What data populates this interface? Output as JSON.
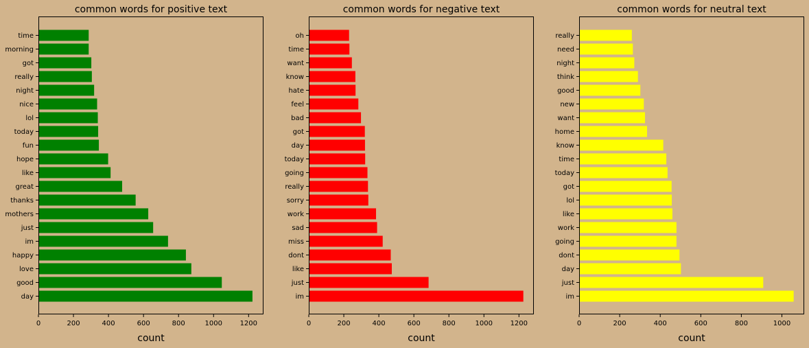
{
  "chart_data": [
    {
      "type": "bar",
      "orientation": "horizontal",
      "title": "common words for positive text",
      "xlabel": "count",
      "ylabel": "",
      "color": "#008000",
      "xlim": [
        0,
        1285
      ],
      "xticks": [
        0,
        200,
        400,
        600,
        800,
        1000,
        1200
      ],
      "grid": false,
      "categories": [
        "time",
        "morning",
        "got",
        "really",
        "night",
        "nice",
        "lol",
        "today",
        "fun",
        "hope",
        "like",
        "great",
        "thanks",
        "mothers",
        "just",
        "im",
        "happy",
        "love",
        "good",
        "day"
      ],
      "values": [
        287,
        287,
        302,
        305,
        318,
        335,
        339,
        341,
        345,
        398,
        412,
        478,
        555,
        627,
        655,
        740,
        842,
        873,
        1047,
        1222
      ]
    },
    {
      "type": "bar",
      "orientation": "horizontal",
      "title": "common words for negative text",
      "xlabel": "count",
      "ylabel": "",
      "color": "#ff0000",
      "xlim": [
        0,
        1285
      ],
      "xticks": [
        0,
        200,
        400,
        600,
        800,
        1000,
        1200
      ],
      "grid": false,
      "categories": [
        "oh",
        "time",
        "want",
        "know",
        "hate",
        "feel",
        "bad",
        "got",
        "day",
        "today",
        "going",
        "really",
        "sorry",
        "work",
        "sad",
        "miss",
        "dont",
        "like",
        "just",
        "im"
      ],
      "values": [
        230,
        232,
        246,
        266,
        267,
        283,
        298,
        320,
        321,
        322,
        335,
        338,
        340,
        384,
        390,
        422,
        468,
        474,
        684,
        1225
      ]
    },
    {
      "type": "bar",
      "orientation": "horizontal",
      "title": "common words for neutral text",
      "xlabel": "count",
      "ylabel": "",
      "color": "#ffff00",
      "xlim": [
        0,
        1110
      ],
      "xticks": [
        0,
        200,
        400,
        600,
        800,
        1000
      ],
      "grid": false,
      "categories": [
        "really",
        "need",
        "night",
        "think",
        "good",
        "new",
        "want",
        "home",
        "know",
        "time",
        "today",
        "got",
        "lol",
        "like",
        "work",
        "going",
        "dont",
        "day",
        "just",
        "im"
      ],
      "values": [
        260,
        265,
        272,
        290,
        302,
        319,
        325,
        335,
        415,
        430,
        436,
        456,
        457,
        460,
        480,
        480,
        495,
        502,
        908,
        1058
      ]
    }
  ]
}
